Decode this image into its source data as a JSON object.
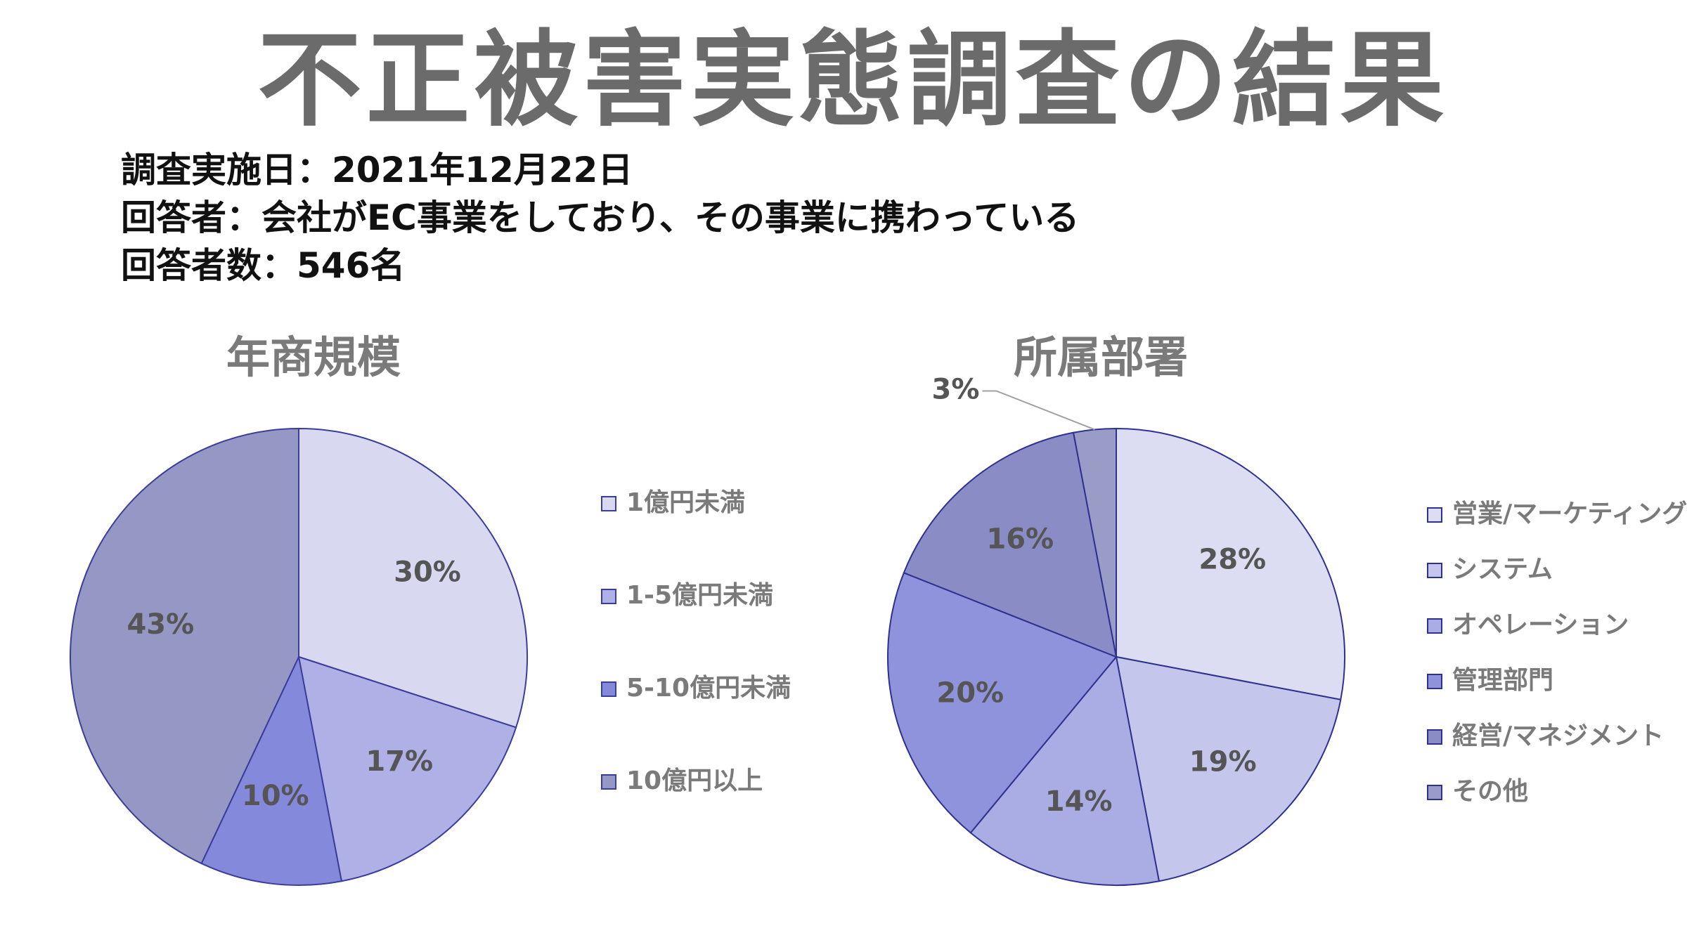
{
  "title": "不正被害実態調査の結果",
  "info": {
    "date_line": "調査実施日：2021年12月22日",
    "respondents_line": "回答者：会社がEC事業をしており、その事業に携わっている",
    "count_line": "回答者数：546名"
  },
  "chart_data": [
    {
      "type": "pie",
      "title": "年商規模",
      "categories": [
        "1億円未満",
        "1-5億円未満",
        "5-10億円未満",
        "10億円以上"
      ],
      "values": [
        30,
        17,
        10,
        43
      ],
      "labels": [
        "30%",
        "17%",
        "10%",
        "43%"
      ],
      "colors": [
        "#d8d8f0",
        "#aeb0e6",
        "#8589dc",
        "#9597c4"
      ],
      "legend_position": "right"
    },
    {
      "type": "pie",
      "title": "所属部署",
      "categories": [
        "営業/マーケティング",
        "システム",
        "オペレーション",
        "管理部門",
        "経営/マネジメント",
        "その他"
      ],
      "values": [
        28,
        19,
        14,
        20,
        16,
        3
      ],
      "labels": [
        "28%",
        "19%",
        "14%",
        "20%",
        "16%",
        "3%"
      ],
      "colors": [
        "#dcdcf2",
        "#c4c6ec",
        "#aaace4",
        "#8f93dc",
        "#8a8cc6",
        "#9a9cc8"
      ],
      "legend_position": "right"
    }
  ]
}
